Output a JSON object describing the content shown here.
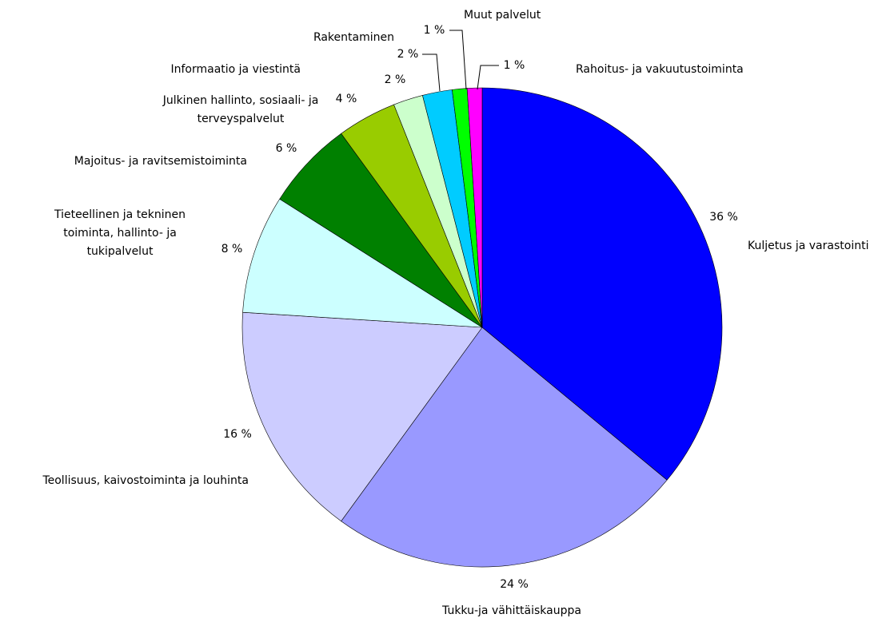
{
  "chart_data": {
    "type": "pie",
    "categories": [
      "Kuljetus ja varastointi",
      "Tukku-ja vähittäiskauppa",
      "Teollisuus, kaivostoiminta ja louhinta",
      "Tieteellinen ja tekninen toiminta, hallinto- ja tukipalvelut",
      "Majoitus- ja ravitsemistoiminta",
      "Julkinen hallinto, sosiaali- ja terveyspalvelut",
      "Informaatio ja viestintä",
      "Rakentaminen",
      "Muut palvelut",
      "Rahoitus- ja vakuutustoiminta"
    ],
    "values": [
      36,
      24,
      16,
      8,
      6,
      4,
      2,
      2,
      1,
      1
    ],
    "value_labels": [
      "36 %",
      "24 %",
      "16 %",
      "8 %",
      "6 %",
      "4 %",
      "2 %",
      "2 %",
      "1 %",
      "1 %"
    ],
    "colors": [
      "#0000ff",
      "#9999ff",
      "#ccccff",
      "#ccffff",
      "#008000",
      "#99cc00",
      "#ccffcc",
      "#00ccff",
      "#00ff00",
      "#ff00ff"
    ]
  }
}
